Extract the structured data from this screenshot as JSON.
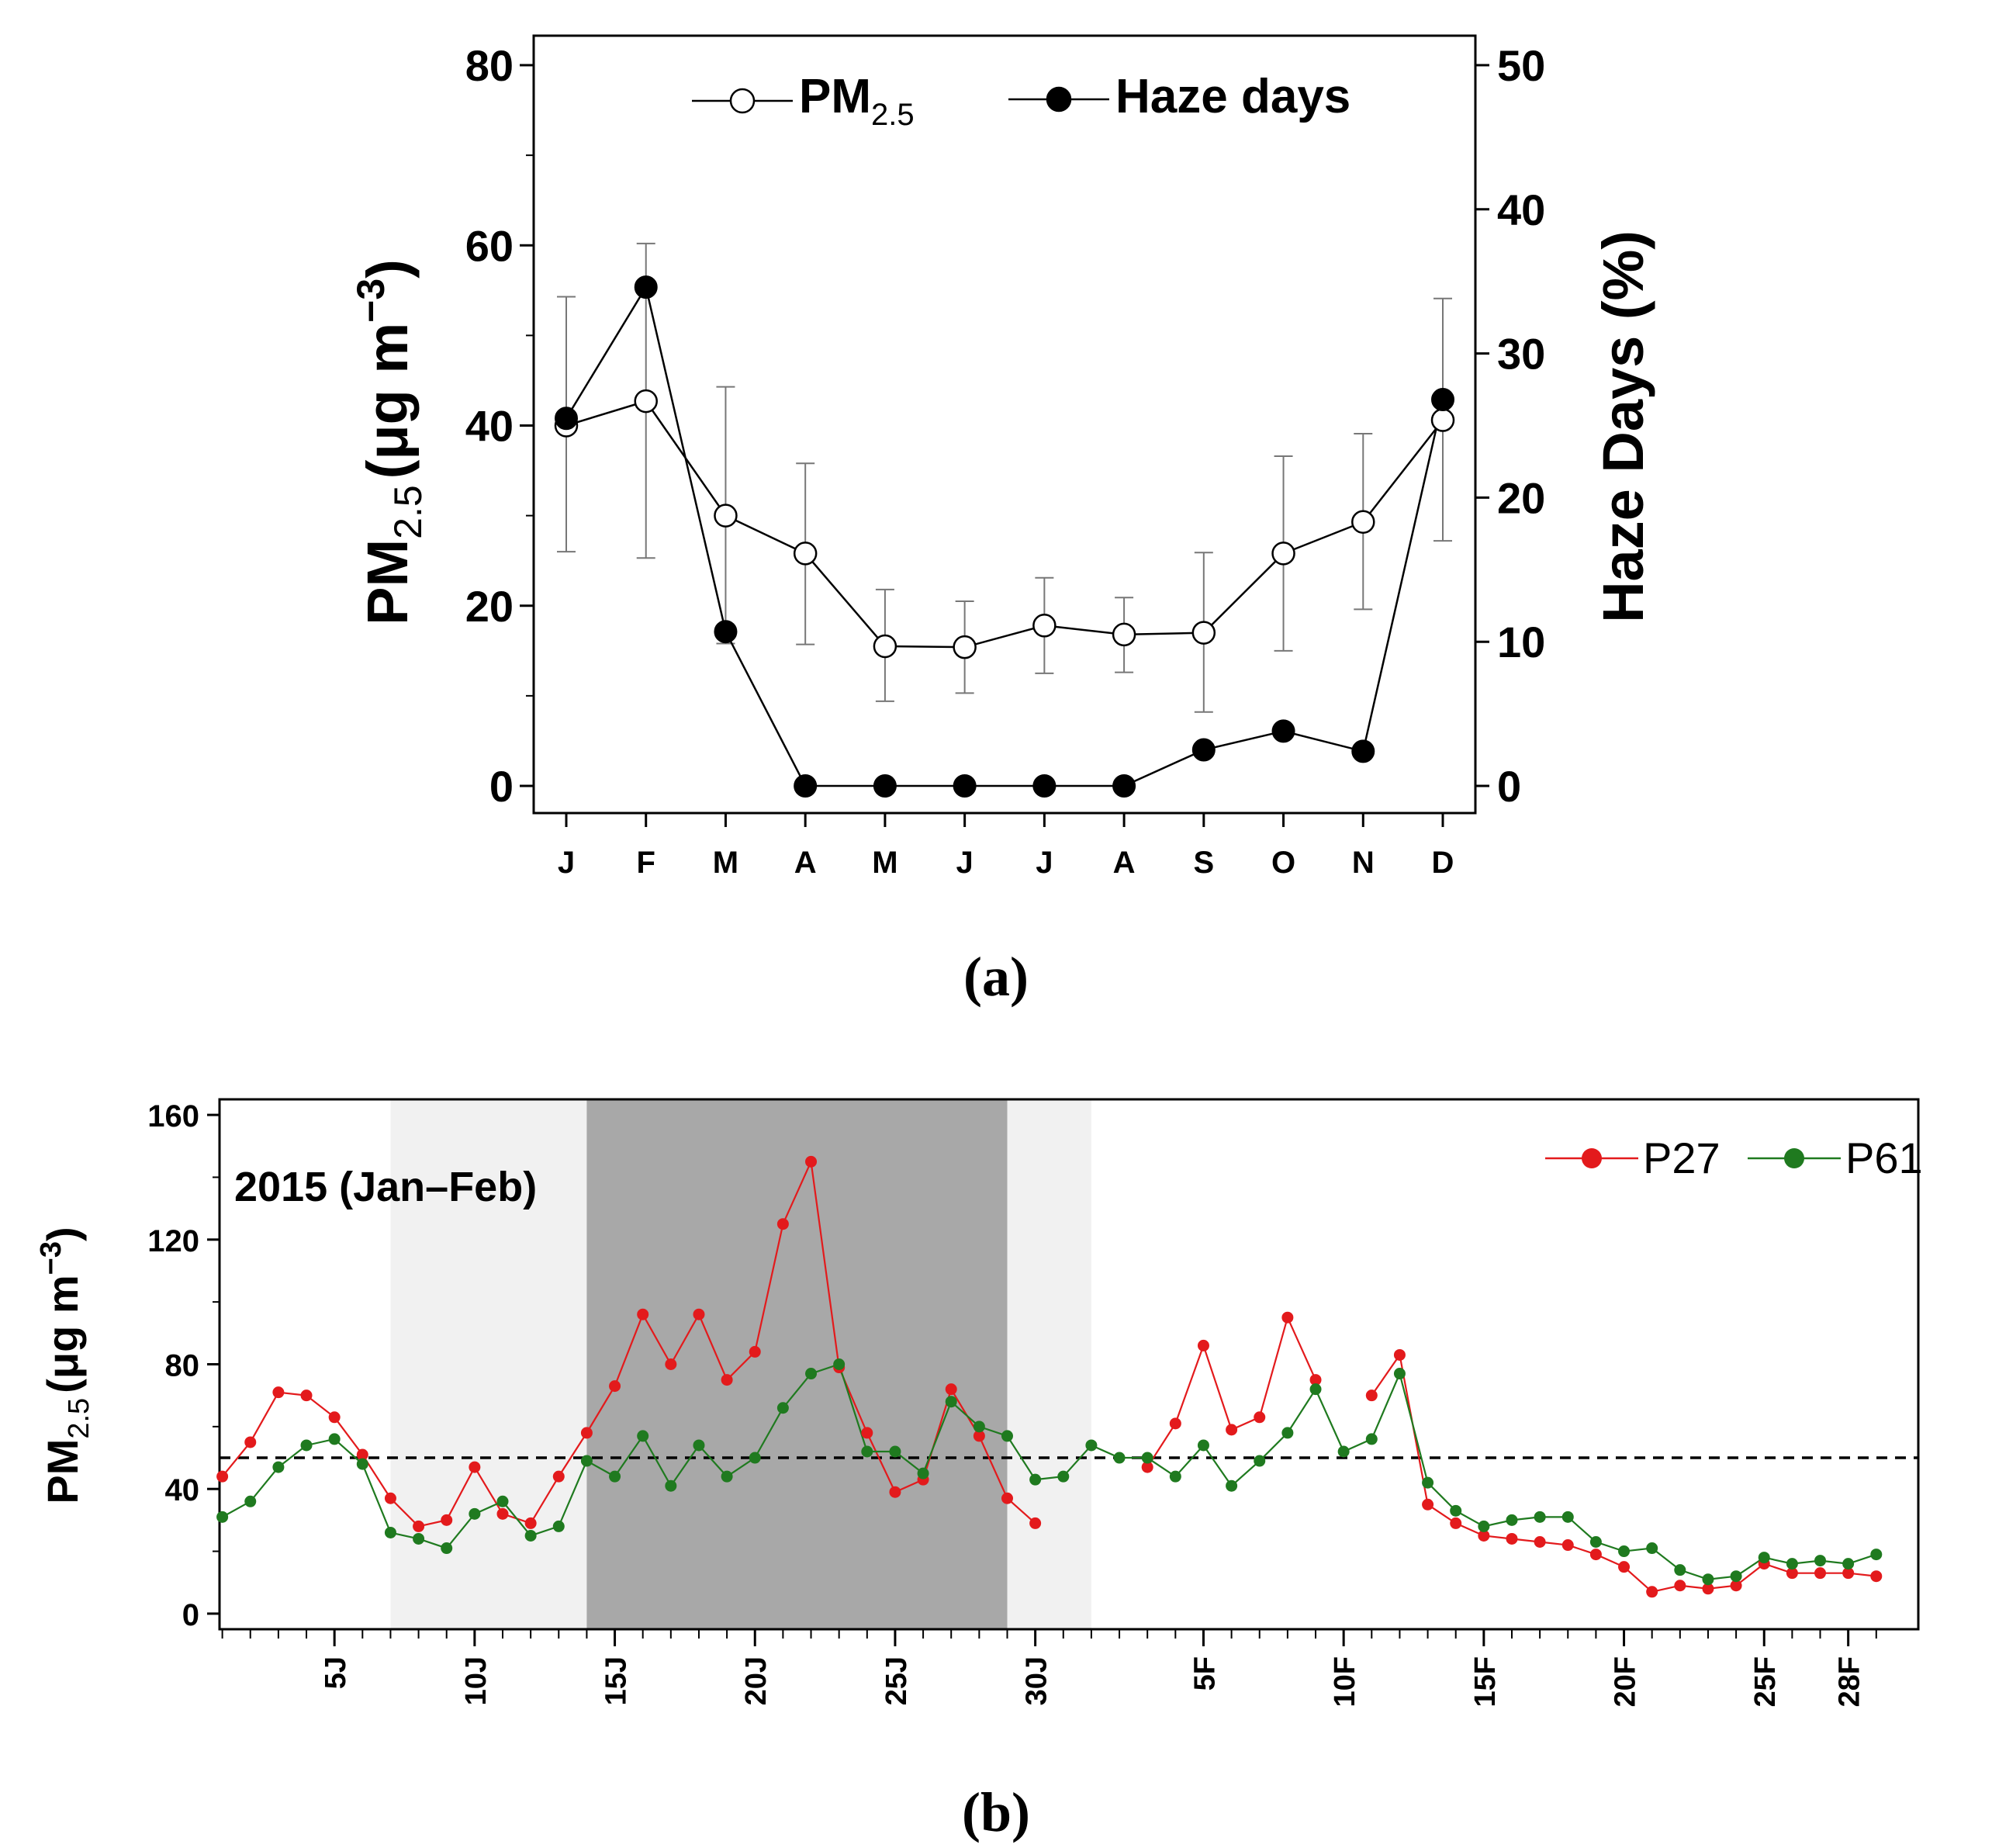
{
  "chart_data": [
    {
      "panel": "(a)",
      "type": "line",
      "categories": [
        "J",
        "F",
        "M",
        "A",
        "M",
        "J",
        "J",
        "A",
        "S",
        "O",
        "N",
        "D"
      ],
      "ylabel_left": "PM",
      "ylabel_left_sub": "2.5",
      "ylabel_left_unit": "(μg m",
      "ylabel_left_exp": "−3",
      "ylabel_left_close": ")",
      "ylabel_right": "Haze Days (%)",
      "ylim_left": [
        0,
        80
      ],
      "yticks_left": [
        "0",
        "20",
        "40",
        "60",
        "80"
      ],
      "ylim_right": [
        0,
        50
      ],
      "yticks_right": [
        "0",
        "10",
        "20",
        "30",
        "40",
        "50"
      ],
      "legend": {
        "pm_main": "PM",
        "pm_sub": "2.5",
        "haze": "Haze days",
        "placement": "top"
      },
      "series": [
        {
          "name": "PM2.5",
          "axis": "left",
          "marker": "open-circle",
          "values": [
            40.0,
            42.7,
            30.0,
            25.8,
            15.5,
            15.4,
            17.8,
            16.8,
            17.0,
            25.8,
            29.3,
            40.6
          ],
          "error_low": [
            26.0,
            25.3,
            15.8,
            15.7,
            9.4,
            10.3,
            12.5,
            12.6,
            8.2,
            15.0,
            19.6,
            27.2
          ],
          "error_high": [
            54.3,
            60.2,
            44.3,
            35.8,
            21.8,
            20.5,
            23.1,
            20.9,
            25.9,
            36.6,
            39.1,
            54.1
          ]
        },
        {
          "name": "Haze days",
          "axis": "right",
          "marker": "filled-circle",
          "values": [
            25.5,
            34.6,
            10.7,
            0,
            0,
            0,
            0,
            0,
            2.5,
            3.8,
            2.4,
            26.8
          ]
        }
      ]
    },
    {
      "panel": "(b)",
      "type": "line",
      "title": "2015 (Jan–Feb)",
      "ylabel": "PM",
      "ylabel_sub": "2.5",
      "ylabel_unit": "(μg m",
      "ylabel_exp": "−3",
      "ylabel_close": ")",
      "ylim": [
        -5,
        165
      ],
      "yticks": [
        "0",
        "40",
        "80",
        "120",
        "160"
      ],
      "xlim_days": [
        -0.1,
        60.5
      ],
      "threshold": 50,
      "light_band_days": [
        6,
        31
      ],
      "dark_band_days": [
        13,
        28
      ],
      "tick_labels": [
        {
          "label": "5J",
          "day": 4
        },
        {
          "label": "10J",
          "day": 9
        },
        {
          "label": "15J",
          "day": 14
        },
        {
          "label": "20J",
          "day": 19
        },
        {
          "label": "25J",
          "day": 24
        },
        {
          "label": "30J",
          "day": 29
        },
        {
          "label": "5F",
          "day": 35
        },
        {
          "label": "10F",
          "day": 40
        },
        {
          "label": "15F",
          "day": 45
        },
        {
          "label": "20F",
          "day": 50
        },
        {
          "label": "25F",
          "day": 55
        },
        {
          "label": "28F",
          "day": 58
        }
      ],
      "legend": [
        "P27",
        "P61"
      ],
      "series": [
        {
          "name": "P27",
          "color": "#e31a1c",
          "values": [
            44,
            55,
            71,
            70,
            63,
            51,
            37,
            28,
            30,
            47,
            32,
            29,
            44,
            58,
            73,
            96,
            80,
            96,
            75,
            84,
            125,
            145,
            79,
            58,
            39,
            43,
            72,
            57,
            37,
            29,
            null,
            null,
            null,
            47,
            61,
            86,
            59,
            63,
            95,
            75,
            null,
            70,
            83,
            35,
            29,
            25,
            24,
            23,
            22,
            19,
            15,
            7,
            9,
            8,
            9,
            16,
            13,
            13,
            13,
            12
          ]
        },
        {
          "name": "P61",
          "color": "#1f7a1f",
          "values": [
            31,
            36,
            47,
            54,
            56,
            48,
            26,
            24,
            21,
            32,
            36,
            25,
            28,
            49,
            44,
            57,
            41,
            54,
            44,
            50,
            66,
            77,
            80,
            52,
            52,
            45,
            68,
            60,
            57,
            43,
            44,
            54,
            50,
            50,
            44,
            54,
            41,
            49,
            58,
            72,
            52,
            56,
            77,
            42,
            33,
            28,
            30,
            31,
            31,
            23,
            20,
            21,
            14,
            11,
            12,
            18,
            16,
            17,
            16,
            19
          ]
        }
      ]
    }
  ],
  "captions": {
    "a": "(a)",
    "b": "(b)"
  }
}
